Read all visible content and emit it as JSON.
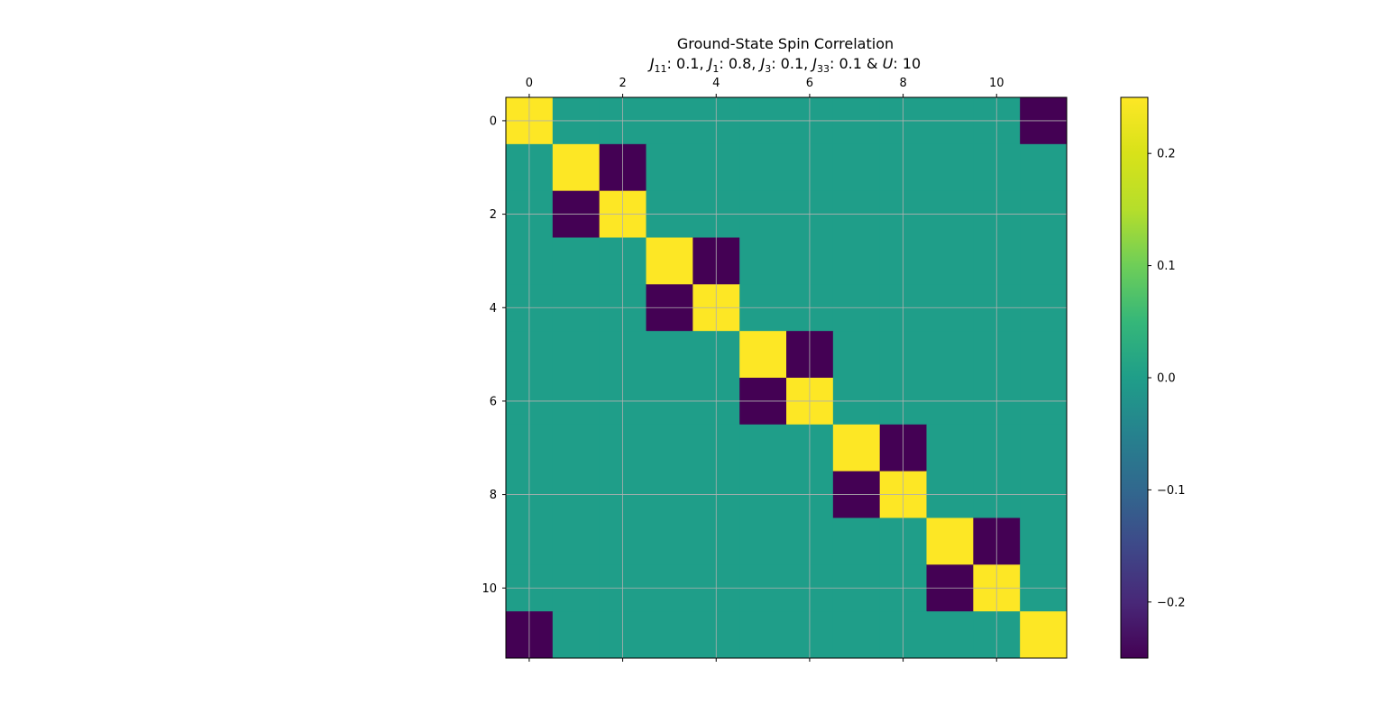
{
  "chart_data": {
    "type": "heatmap",
    "title": "Ground-State Spin Correlation",
    "subtitle": {
      "j11_value": "0.1",
      "j1_value": "0.8",
      "j3_value": "0.1",
      "j33_value": "0.1",
      "u_value": "10"
    },
    "rows": 12,
    "cols": 12,
    "values": [
      [
        0.25,
        0,
        0,
        0,
        0,
        0,
        0,
        0,
        0,
        0,
        0,
        -0.25
      ],
      [
        0,
        0.25,
        -0.25,
        0,
        0,
        0,
        0,
        0,
        0,
        0,
        0,
        0
      ],
      [
        0,
        -0.25,
        0.25,
        0,
        0,
        0,
        0,
        0,
        0,
        0,
        0,
        0
      ],
      [
        0,
        0,
        0,
        0.25,
        -0.25,
        0,
        0,
        0,
        0,
        0,
        0,
        0
      ],
      [
        0,
        0,
        0,
        -0.25,
        0.25,
        0,
        0,
        0,
        0,
        0,
        0,
        0
      ],
      [
        0,
        0,
        0,
        0,
        0,
        0.25,
        -0.25,
        0,
        0,
        0,
        0,
        0
      ],
      [
        0,
        0,
        0,
        0,
        0,
        -0.25,
        0.25,
        0,
        0,
        0,
        0,
        0
      ],
      [
        0,
        0,
        0,
        0,
        0,
        0,
        0,
        0.25,
        -0.25,
        0,
        0,
        0
      ],
      [
        0,
        0,
        0,
        0,
        0,
        0,
        0,
        -0.25,
        0.25,
        0,
        0,
        0
      ],
      [
        0,
        0,
        0,
        0,
        0,
        0,
        0,
        0,
        0,
        0.25,
        -0.25,
        0
      ],
      [
        0,
        0,
        0,
        0,
        0,
        0,
        0,
        0,
        0,
        -0.25,
        0.25,
        0
      ],
      [
        -0.25,
        0,
        0,
        0,
        0,
        0,
        0,
        0,
        0,
        0,
        0,
        0.25
      ]
    ],
    "xticks": [
      0,
      2,
      4,
      6,
      8,
      10
    ],
    "yticks": [
      0,
      2,
      4,
      6,
      8,
      10
    ],
    "xtick_position": "top",
    "grid": true,
    "colormap": "viridis",
    "vmin": -0.25,
    "vmax": 0.25,
    "colorbar": {
      "ticks": [
        0.2,
        0.1,
        0.0,
        -0.1,
        -0.2
      ],
      "tick_labels": [
        "0.2",
        "0.1",
        "0.0",
        "−0.1",
        "−0.2"
      ],
      "placement": "right"
    }
  }
}
